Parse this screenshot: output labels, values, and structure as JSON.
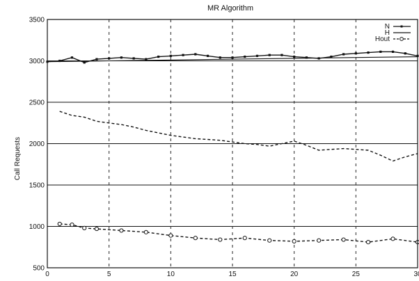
{
  "chart_data": {
    "type": "line",
    "title": "MR Algorithm",
    "xlabel": "",
    "ylabel": "Call Requests",
    "xlim": [
      0,
      30
    ],
    "ylim": [
      500,
      3500
    ],
    "xticks": [
      "0",
      "5",
      "10",
      "15",
      "20",
      "25",
      "30"
    ],
    "yticks": [
      "500",
      "1000",
      "1500",
      "2000",
      "2500",
      "3000",
      "3500"
    ],
    "grid": "y-solid, x-dashed",
    "legend": "top-right",
    "series": [
      {
        "name": "N",
        "style": "solid-markers",
        "x": [
          0,
          1,
          2,
          3,
          4,
          5,
          6,
          7,
          8,
          9,
          10,
          11,
          12,
          13,
          14,
          15,
          16,
          17,
          18,
          19,
          20,
          21,
          22,
          23,
          24,
          25,
          26,
          27,
          28,
          29,
          30
        ],
        "values": [
          2990,
          3000,
          3040,
          2980,
          3020,
          3030,
          3040,
          3030,
          3020,
          3050,
          3060,
          3070,
          3080,
          3060,
          3040,
          3040,
          3050,
          3060,
          3070,
          3070,
          3050,
          3040,
          3030,
          3050,
          3080,
          3090,
          3100,
          3110,
          3110,
          3090,
          3060
        ]
      },
      {
        "name": "H",
        "style": "solid",
        "x": [
          0,
          5,
          10,
          15,
          20,
          25,
          30
        ],
        "values": [
          2990,
          3000,
          3010,
          3020,
          3030,
          3040,
          3050
        ]
      },
      {
        "name": "Hout",
        "style": "dashed-open-circles",
        "x": [
          1,
          2,
          3,
          4,
          6,
          8,
          10,
          12,
          14,
          16,
          18,
          20,
          22,
          24,
          26,
          28,
          30
        ],
        "values": [
          1030,
          1020,
          980,
          970,
          950,
          930,
          890,
          860,
          840,
          860,
          830,
          820,
          830,
          840,
          810,
          850,
          810
        ]
      },
      {
        "name": "",
        "style": "dashed",
        "x": [
          1,
          2,
          3,
          4,
          5,
          6,
          7,
          8,
          9,
          10,
          11,
          12,
          13,
          14,
          15,
          16,
          17,
          18,
          19,
          20,
          21,
          22,
          23,
          24,
          25,
          26,
          27,
          28,
          29,
          30
        ],
        "values": [
          2390,
          2340,
          2320,
          2270,
          2250,
          2230,
          2200,
          2160,
          2130,
          2100,
          2080,
          2060,
          2050,
          2040,
          2020,
          2000,
          1990,
          1970,
          2000,
          2030,
          1980,
          1920,
          1930,
          1940,
          1930,
          1920,
          1860,
          1790,
          1840,
          1880
        ]
      }
    ]
  }
}
